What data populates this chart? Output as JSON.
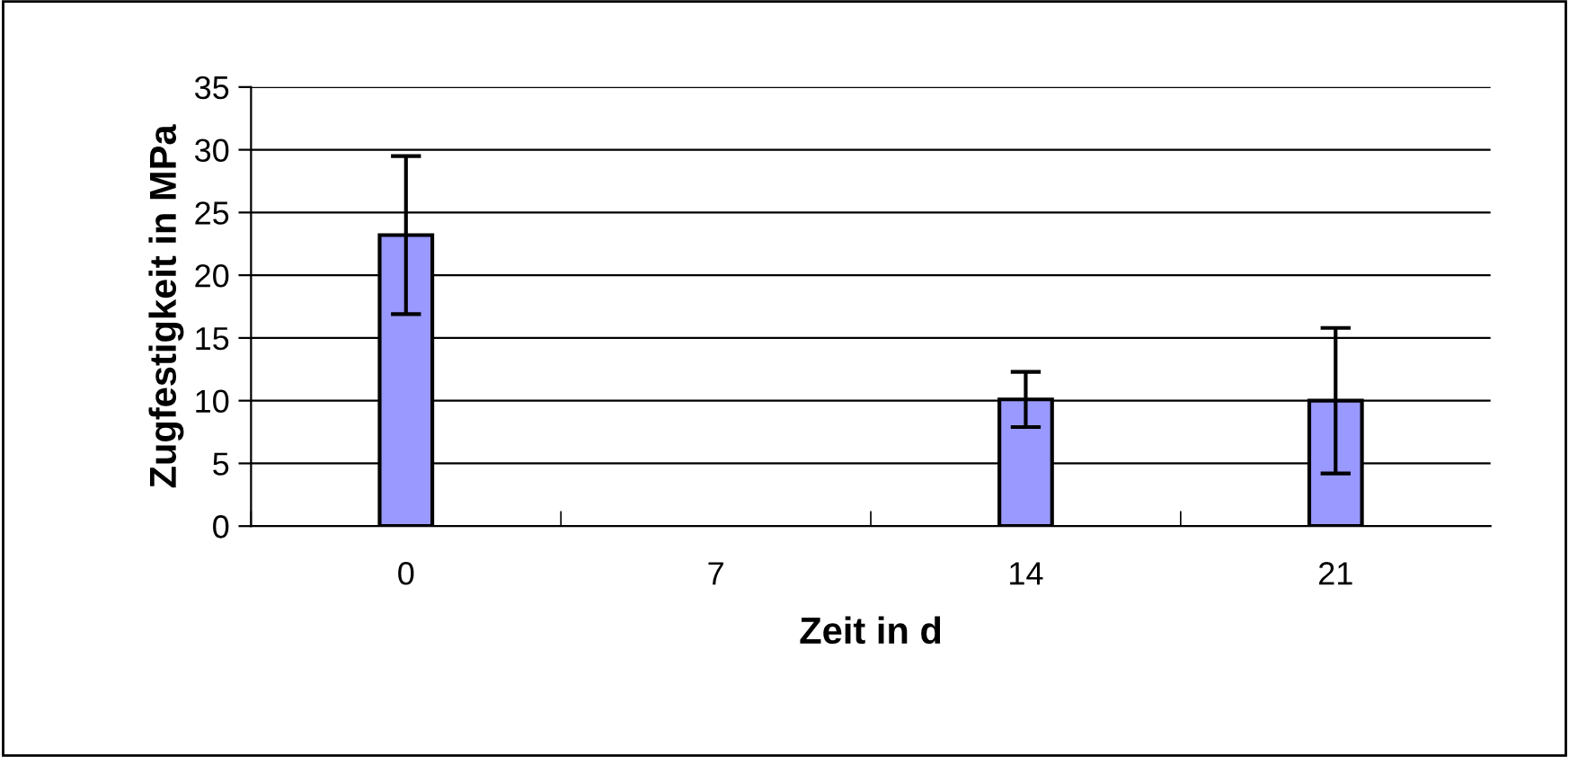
{
  "chart_data": {
    "type": "bar",
    "xlabel": "Zeit in d",
    "ylabel": "Zugfestigkeit in MPa",
    "categories": [
      "0",
      "7",
      "14",
      "21"
    ],
    "values": [
      23.2,
      null,
      10.1,
      10.0
    ],
    "errors": [
      6.3,
      null,
      2.2,
      5.8
    ],
    "color": "#9999ff",
    "ylim": [
      0,
      35
    ],
    "yticks": [
      0,
      5,
      10,
      15,
      20,
      25,
      30,
      35
    ],
    "grid": "y",
    "legend": false
  }
}
